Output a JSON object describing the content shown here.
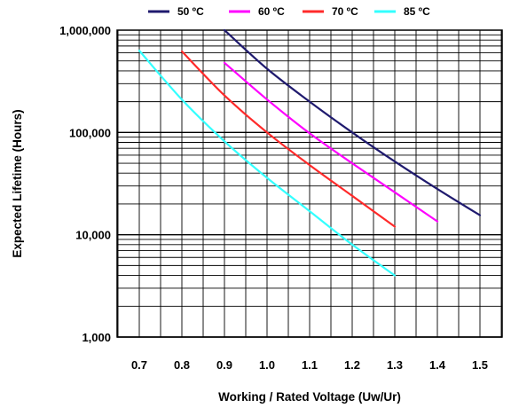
{
  "chart_data": {
    "type": "line",
    "xlabel": "Working / Rated Voltage (Uw/Ur)",
    "ylabel": "Expected Lifetime (Hours)",
    "xlim": [
      0.7,
      1.5
    ],
    "ylim": [
      1000,
      1000000
    ],
    "yscale": "log",
    "grid": true,
    "legend_position": "top",
    "x_ticks": [
      {
        "value": 0.7,
        "label": "0.7"
      },
      {
        "value": 0.8,
        "label": "0.8"
      },
      {
        "value": 0.9,
        "label": "0.9"
      },
      {
        "value": 1.0,
        "label": "1.0"
      },
      {
        "value": 1.1,
        "label": "1.1"
      },
      {
        "value": 1.2,
        "label": "1.2"
      },
      {
        "value": 1.3,
        "label": "1.3"
      },
      {
        "value": 1.4,
        "label": "1.4"
      },
      {
        "value": 1.5,
        "label": "1.5"
      }
    ],
    "y_ticks": [
      {
        "value": 1000,
        "label": "1,000"
      },
      {
        "value": 10000,
        "label": "10,000"
      },
      {
        "value": 100000,
        "label": "100,000"
      },
      {
        "value": 1000000,
        "label": "1,000,000"
      }
    ],
    "series": [
      {
        "name": "50 ºC",
        "color": "#1f1a6e",
        "points": [
          {
            "x": 0.9,
            "y": 1000000
          },
          {
            "x": 1.0,
            "y": 420000
          },
          {
            "x": 1.1,
            "y": 200000
          },
          {
            "x": 1.2,
            "y": 100000
          },
          {
            "x": 1.3,
            "y": 52000
          },
          {
            "x": 1.4,
            "y": 28000
          },
          {
            "x": 1.5,
            "y": 15500
          }
        ]
      },
      {
        "name": "60 ºC",
        "color": "#ff00ff",
        "points": [
          {
            "x": 0.9,
            "y": 480000
          },
          {
            "x": 1.0,
            "y": 210000
          },
          {
            "x": 1.1,
            "y": 98000
          },
          {
            "x": 1.2,
            "y": 50000
          },
          {
            "x": 1.3,
            "y": 26000
          },
          {
            "x": 1.4,
            "y": 13500
          }
        ]
      },
      {
        "name": "70 ºC",
        "color": "#ff2a2a",
        "points": [
          {
            "x": 0.8,
            "y": 620000
          },
          {
            "x": 0.9,
            "y": 230000
          },
          {
            "x": 1.0,
            "y": 100000
          },
          {
            "x": 1.1,
            "y": 48000
          },
          {
            "x": 1.2,
            "y": 24000
          },
          {
            "x": 1.3,
            "y": 12000
          }
        ]
      },
      {
        "name": "85 ºC",
        "color": "#33ffff",
        "points": [
          {
            "x": 0.7,
            "y": 630000
          },
          {
            "x": 0.8,
            "y": 210000
          },
          {
            "x": 0.9,
            "y": 82000
          },
          {
            "x": 1.0,
            "y": 36000
          },
          {
            "x": 1.1,
            "y": 17000
          },
          {
            "x": 1.2,
            "y": 8000
          },
          {
            "x": 1.3,
            "y": 4000
          }
        ]
      }
    ]
  }
}
